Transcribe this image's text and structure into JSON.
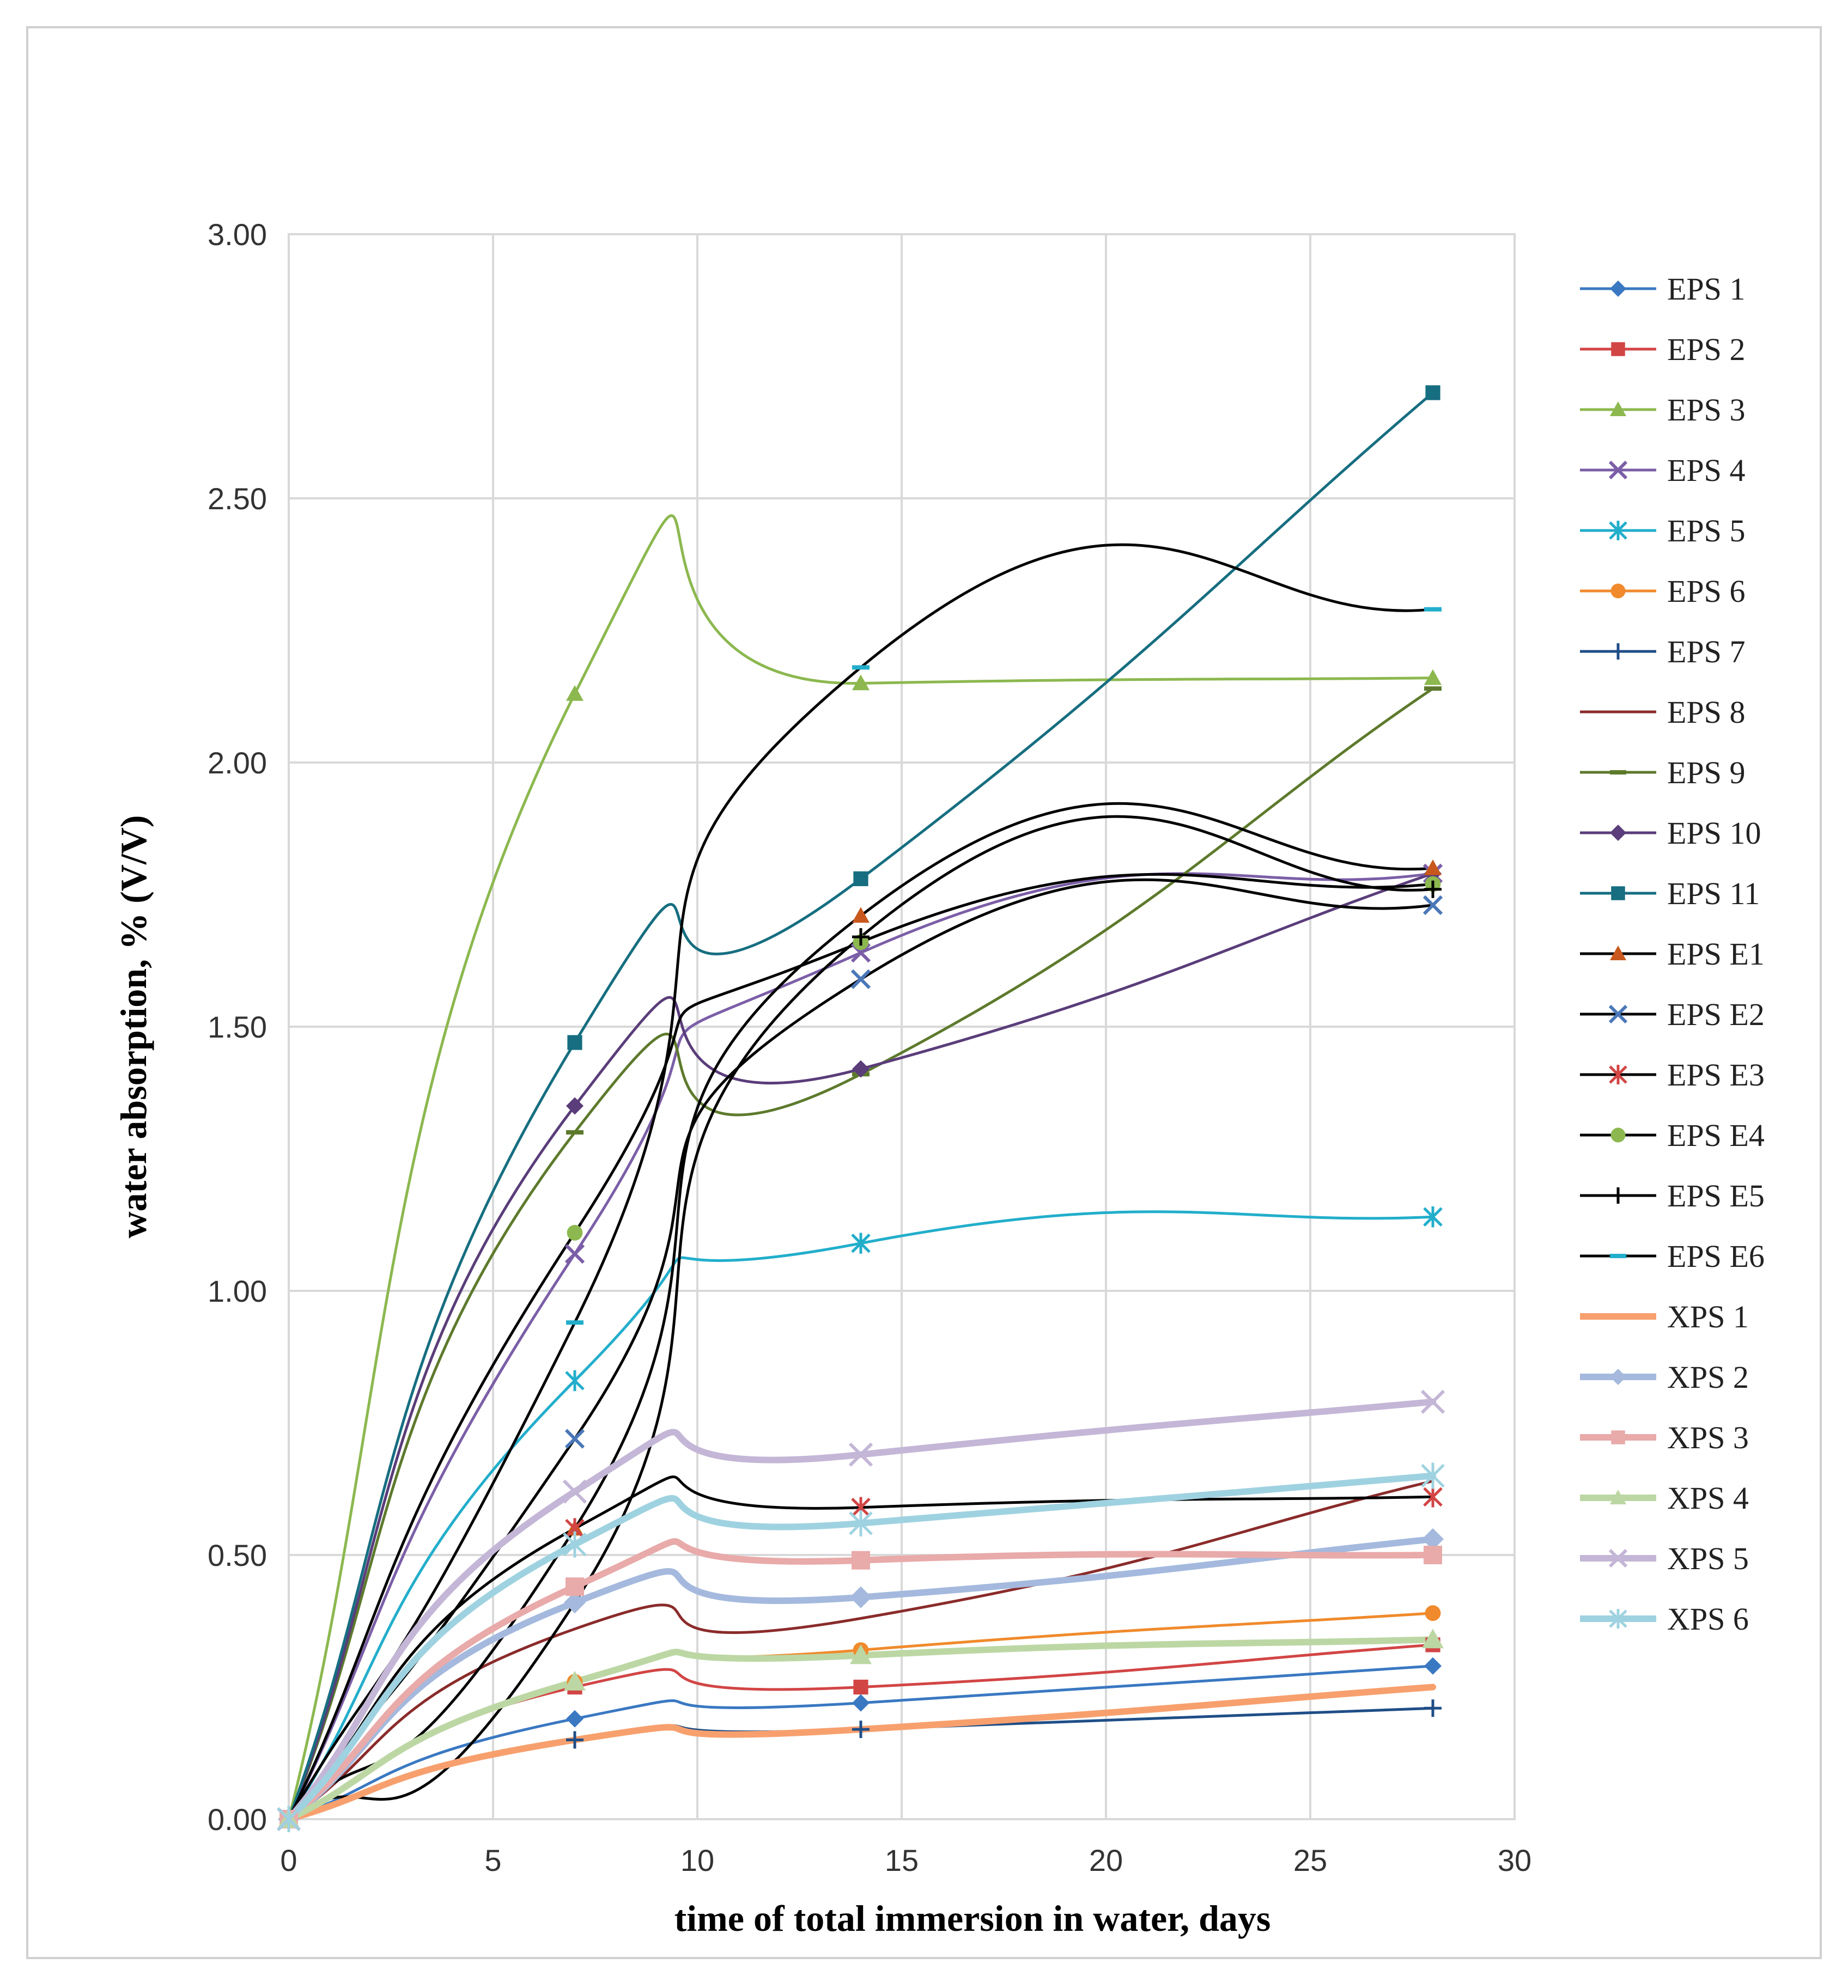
{
  "chart_data": {
    "type": "line",
    "title": "",
    "xlabel": "time of total immersion in water, days",
    "ylabel": "water absorption, % (V/V)",
    "xlim": [
      0,
      30
    ],
    "ylim": [
      0,
      3
    ],
    "xticks": [
      0,
      5,
      10,
      15,
      20,
      25,
      30
    ],
    "xtick_labels": [
      "0",
      "5",
      "10",
      "15",
      "20",
      "25",
      "30"
    ],
    "yticks": [
      0,
      0.5,
      1.0,
      1.5,
      2.0,
      2.5,
      3.0
    ],
    "ytick_labels": [
      "0.00",
      "0.50",
      "1.00",
      "1.50",
      "2.00",
      "2.50",
      "3.00"
    ],
    "grid": true,
    "legend_position": "right",
    "x": [
      0,
      7,
      14,
      28
    ],
    "series": [
      {
        "name": "EPS 1",
        "values": [
          0,
          0.19,
          0.22,
          0.29
        ],
        "color": "#3a78c2",
        "marker": "diamond",
        "width": 5
      },
      {
        "name": "EPS 2",
        "values": [
          0,
          0.25,
          0.25,
          0.33
        ],
        "color": "#d24545",
        "marker": "square",
        "width": 5
      },
      {
        "name": "EPS 3",
        "values": [
          0,
          2.13,
          2.15,
          2.16
        ],
        "color": "#8cb84f",
        "marker": "triangle",
        "width": 5
      },
      {
        "name": "EPS 4",
        "values": [
          0,
          1.07,
          1.64,
          1.79
        ],
        "color": "#7b5ea7",
        "marker": "x",
        "width": 5
      },
      {
        "name": "EPS 5",
        "values": [
          0,
          0.83,
          1.09,
          1.14
        ],
        "color": "#22aecb",
        "marker": "asterisk",
        "width": 5
      },
      {
        "name": "EPS 6",
        "values": [
          0,
          0.26,
          0.32,
          0.39
        ],
        "color": "#f08a2c",
        "marker": "circle",
        "width": 5
      },
      {
        "name": "EPS 7",
        "values": [
          0,
          0.15,
          0.17,
          0.21
        ],
        "color": "#1f4e87",
        "marker": "plus",
        "width": 5
      },
      {
        "name": "EPS 8",
        "values": [
          0,
          0.36,
          0.38,
          0.64
        ],
        "color": "#8a2b2b",
        "marker": "none",
        "width": 5
      },
      {
        "name": "EPS 9",
        "values": [
          0,
          1.3,
          1.41,
          2.14
        ],
        "color": "#5d7a2c",
        "marker": "dash",
        "width": 5
      },
      {
        "name": "EPS 10",
        "values": [
          0,
          1.35,
          1.42,
          1.79
        ],
        "color": "#5a3d7a",
        "marker": "diamond",
        "width": 5
      },
      {
        "name": "EPS 11",
        "values": [
          0,
          1.47,
          1.78,
          2.7
        ],
        "color": "#166e80",
        "marker": "square",
        "width": 5
      },
      {
        "name": "EPS E1",
        "values": [
          0,
          0.55,
          1.71,
          1.8
        ],
        "color": "#000000",
        "marker": "triangle",
        "markerColor": "#c8581d",
        "width": 5
      },
      {
        "name": "EPS E2",
        "values": [
          0,
          0.72,
          1.59,
          1.73
        ],
        "color": "#000000",
        "marker": "x",
        "markerColor": "#4a78b8",
        "width": 5
      },
      {
        "name": "EPS E3",
        "values": [
          0,
          0.55,
          0.59,
          0.61
        ],
        "color": "#000000",
        "marker": "asterisk",
        "markerColor": "#d24545",
        "width": 5
      },
      {
        "name": "EPS E4",
        "values": [
          0,
          1.11,
          1.66,
          1.77
        ],
        "color": "#000000",
        "marker": "circle",
        "markerColor": "#8cb84f",
        "width": 5
      },
      {
        "name": "EPS E5",
        "values": [
          0,
          0.41,
          1.67,
          1.76
        ],
        "color": "#000000",
        "marker": "plus",
        "width": 5
      },
      {
        "name": "EPS E6",
        "values": [
          0,
          0.94,
          2.18,
          2.29
        ],
        "color": "#000000",
        "marker": "dash",
        "markerColor": "#22aecb",
        "width": 5
      },
      {
        "name": "XPS 1",
        "values": [
          0,
          0.15,
          0.17,
          0.25
        ],
        "color": "#f7a06e",
        "marker": "none",
        "width": 12
      },
      {
        "name": "XPS 2",
        "values": [
          0,
          0.41,
          0.42,
          0.53
        ],
        "color": "#a4b9dd",
        "marker": "diamond",
        "width": 12
      },
      {
        "name": "XPS 3",
        "values": [
          0,
          0.44,
          0.49,
          0.5
        ],
        "color": "#e9aaaa",
        "marker": "square",
        "width": 12
      },
      {
        "name": "XPS 4",
        "values": [
          0,
          0.26,
          0.31,
          0.34
        ],
        "color": "#bcd7a4",
        "marker": "triangle",
        "width": 12
      },
      {
        "name": "XPS 5",
        "values": [
          0,
          0.62,
          0.69,
          0.79
        ],
        "color": "#c4b6d6",
        "marker": "x",
        "width": 12
      },
      {
        "name": "XPS 6",
        "values": [
          0,
          0.52,
          0.56,
          0.65
        ],
        "color": "#9fd2e0",
        "marker": "asterisk",
        "width": 12
      }
    ]
  }
}
